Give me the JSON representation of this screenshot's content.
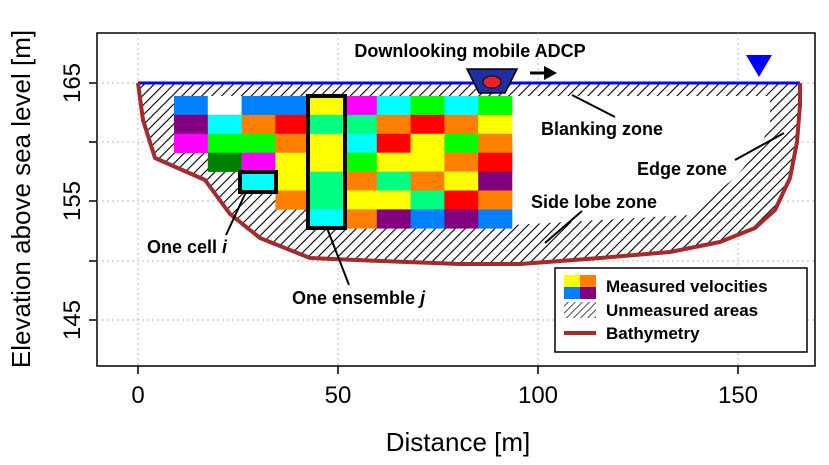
{
  "axes": {
    "xlabel": "Distance [m]",
    "ylabel": "Elevation above sea level [m]",
    "xticks": [
      "0",
      "50",
      "100",
      "150"
    ],
    "yticks": [
      "145",
      "155",
      "165"
    ]
  },
  "annotations": {
    "adcp": "Downlooking mobile ADCP",
    "blanking": "Blanking zone",
    "edge": "Edge zone",
    "side_lobe": "Side lobe zone",
    "cell_prefix": "One cell ",
    "cell_var": "i",
    "ensemble_prefix": "One ensemble ",
    "ensemble_var": "j"
  },
  "legend": {
    "measured": "Measured velocities",
    "unmeasured": "Unmeasured areas",
    "bathymetry": "Bathymetry"
  },
  "colors": {
    "water_surface": "#0000ff",
    "bathymetry": "#a52a2a",
    "adcp_body": "#1f2f9f",
    "adcp_dot": "#e8202a",
    "cell_palette": [
      "#0080ff",
      "#ffffff",
      "#00ffff",
      "#ff0000",
      "#00ff00",
      "#800080",
      "#ff8000",
      "#ffff00",
      "#ff00ff",
      "#008000",
      "#00ff80"
    ]
  },
  "grid": {
    "rows": 7,
    "cols": 10,
    "cells": [
      [
        "#0080ff",
        "#ffffff",
        "#0080ff",
        "#0080ff",
        "#ffff00",
        "#ff00ff",
        "#00ffff",
        "#00ff00",
        "#00ffff",
        "#00ff00"
      ],
      [
        "#800080",
        "#00ffff",
        "#ff8000",
        "#ff0000",
        "#00ff80",
        "#00ff80",
        "#ff8000",
        "#ff0000",
        "#ff8000",
        "#ffff00"
      ],
      [
        "#ff00ff",
        "#00ff00",
        "#00ff00",
        "#ff8000",
        "#ffff00",
        "#00ffff",
        "#ff0000",
        "#ffff00",
        "#00ff00",
        "#ff8000"
      ],
      [
        null,
        "#008000",
        "#ff00ff",
        "#ffff00",
        "#ffff00",
        "#00ff00",
        "#ffff00",
        "#ffff00",
        "#ff8000",
        "#ff0000"
      ],
      [
        null,
        null,
        "#00ffff",
        "#ffff00",
        "#00ff80",
        "#ff8000",
        "#00ff80",
        "#ff8000",
        "#ffff00",
        "#800080"
      ],
      [
        null,
        null,
        null,
        "#ff8000",
        "#00ff80",
        "#ffff00",
        "#ffff00",
        "#00ff80",
        "#ff0000",
        "#ff8000"
      ],
      [
        null,
        null,
        null,
        null,
        "#00ffff",
        "#ff8000",
        "#800080",
        "#0080ff",
        "#800080",
        "#0080ff"
      ]
    ]
  }
}
